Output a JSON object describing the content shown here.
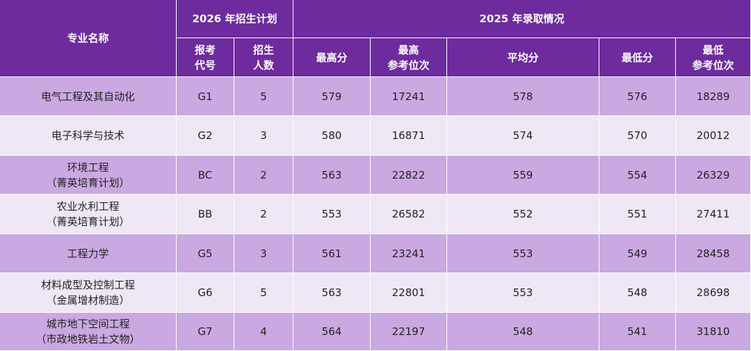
{
  "header": {
    "name": "专业名称",
    "group_plan": "2026 年招生计划",
    "group_result": "2025 年录取情况",
    "columns": [
      [
        "报考",
        "代号"
      ],
      [
        "招生",
        "人数"
      ],
      [
        "最高分"
      ],
      [
        "最高",
        "参考位次"
      ],
      [
        "平均分"
      ],
      [
        "最低分"
      ],
      [
        "最低",
        "参考位次"
      ]
    ]
  },
  "rows": [
    {
      "name": [
        "电气工程及其自动化"
      ],
      "code": "G1",
      "plan": 5,
      "max": 579,
      "max_rank": 17241,
      "avg": 578,
      "min": 576,
      "min_rank": 18289
    },
    {
      "name": [
        "电子科学与技术"
      ],
      "code": "G2",
      "plan": 3,
      "max": 580,
      "max_rank": 16871,
      "avg": 574,
      "min": 570,
      "min_rank": 20012
    },
    {
      "name": [
        "环境工程",
        "（菁英培育计划）"
      ],
      "code": "BC",
      "plan": 2,
      "max": 563,
      "max_rank": 22822,
      "avg": 559,
      "min": 554,
      "min_rank": 26329
    },
    {
      "name": [
        "农业水利工程",
        "（菁英培育计划）"
      ],
      "code": "BB",
      "plan": 2,
      "max": 553,
      "max_rank": 26582,
      "avg": 552,
      "min": 551,
      "min_rank": 27411
    },
    {
      "name": [
        "工程力学"
      ],
      "code": "G5",
      "plan": 3,
      "max": 561,
      "max_rank": 23241,
      "avg": 553,
      "min": 549,
      "min_rank": 28458
    },
    {
      "name": [
        "材料成型及控制工程",
        "（金属增材制造）"
      ],
      "code": "G6",
      "plan": 5,
      "max": 563,
      "max_rank": 22801,
      "avg": 553,
      "min": 548,
      "min_rank": 28698
    },
    {
      "name": [
        "城市地下空间工程",
        "（市政地铁岩土文物）"
      ],
      "code": "G7",
      "plan": 4,
      "max": 564,
      "max_rank": 22197,
      "avg": 548,
      "min": 541,
      "min_rank": 31810
    }
  ]
}
